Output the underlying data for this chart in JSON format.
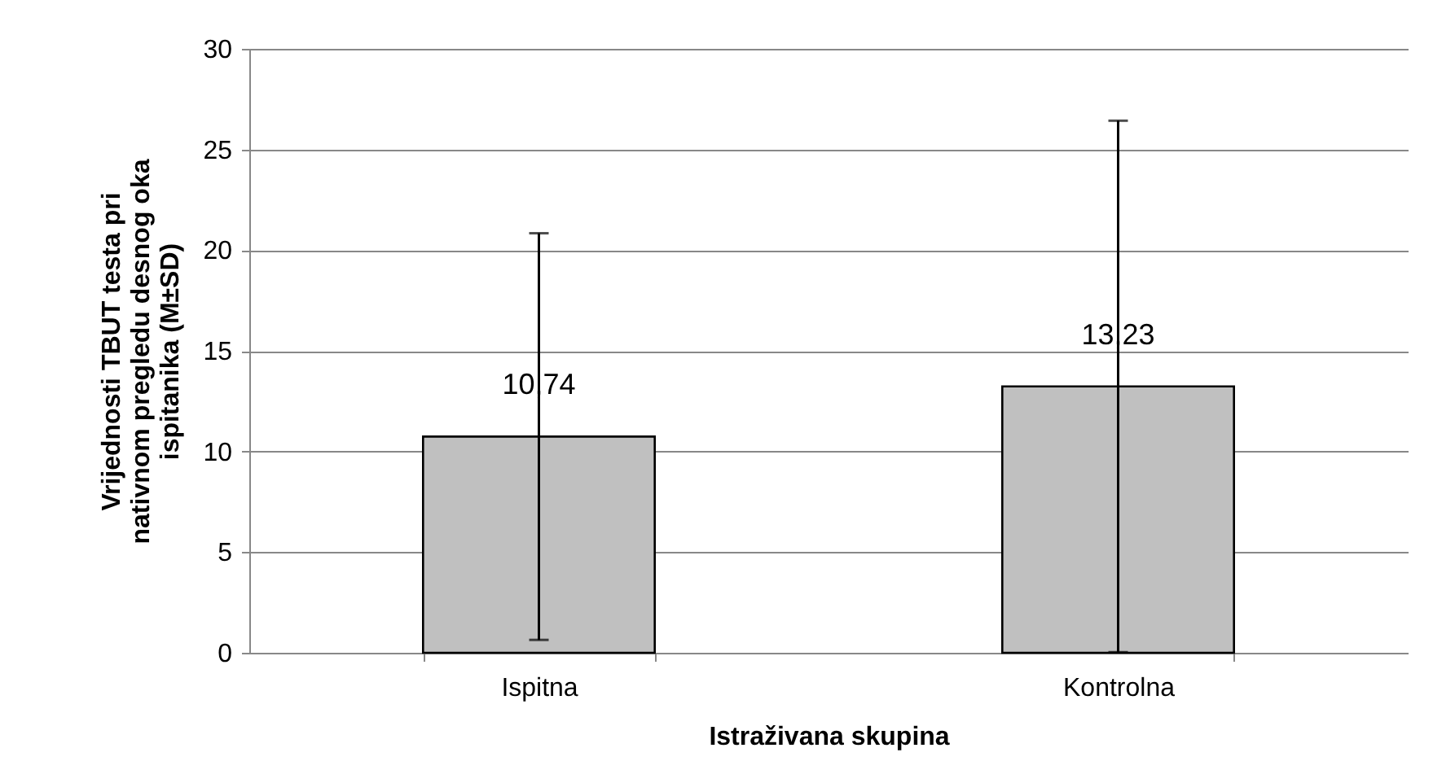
{
  "chart_data": {
    "type": "bar",
    "xlabel": "Istraživana skupina",
    "ylabel": "Vrijednosti TBUT testa pri nativnom pregledu desnog oka ispitanika (M±SD)",
    "categories": [
      "Ispitna",
      "Kontrolna"
    ],
    "values": [
      10.74,
      13.23
    ],
    "errors": [
      10.1,
      13.2
    ],
    "value_labels": [
      "10,74",
      "13,23"
    ],
    "color": "#c0c0c0",
    "ylim": [
      0,
      30
    ],
    "yticks": [
      0,
      5,
      10,
      15,
      20,
      25,
      30
    ],
    "grid": "y"
  }
}
